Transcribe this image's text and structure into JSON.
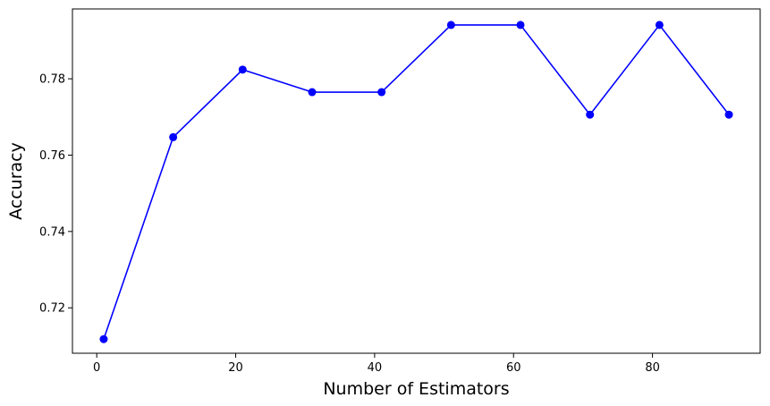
{
  "chart_data": {
    "type": "line",
    "title": "",
    "xlabel": "Number of Estimators",
    "ylabel": "Accuracy",
    "xlim": [
      -3.5,
      95.5
    ],
    "ylim": [
      0.7081,
      0.7983
    ],
    "x_ticks": [
      0,
      20,
      40,
      60,
      80
    ],
    "x_tick_labels": [
      "0",
      "20",
      "40",
      "60",
      "80"
    ],
    "y_ticks": [
      0.72,
      0.74,
      0.76,
      0.78
    ],
    "y_tick_labels": [
      "0.72",
      "0.74",
      "0.76",
      "0.78"
    ],
    "grid": false,
    "series": [
      {
        "x": [
          1,
          11,
          21,
          31,
          41,
          51,
          61,
          71,
          81,
          91
        ],
        "values": [
          0.7118,
          0.7647,
          0.7824,
          0.7765,
          0.7765,
          0.7941,
          0.7941,
          0.7706,
          0.7941,
          0.7706
        ],
        "color": "#0000ff",
        "marker": "circle"
      }
    ]
  }
}
